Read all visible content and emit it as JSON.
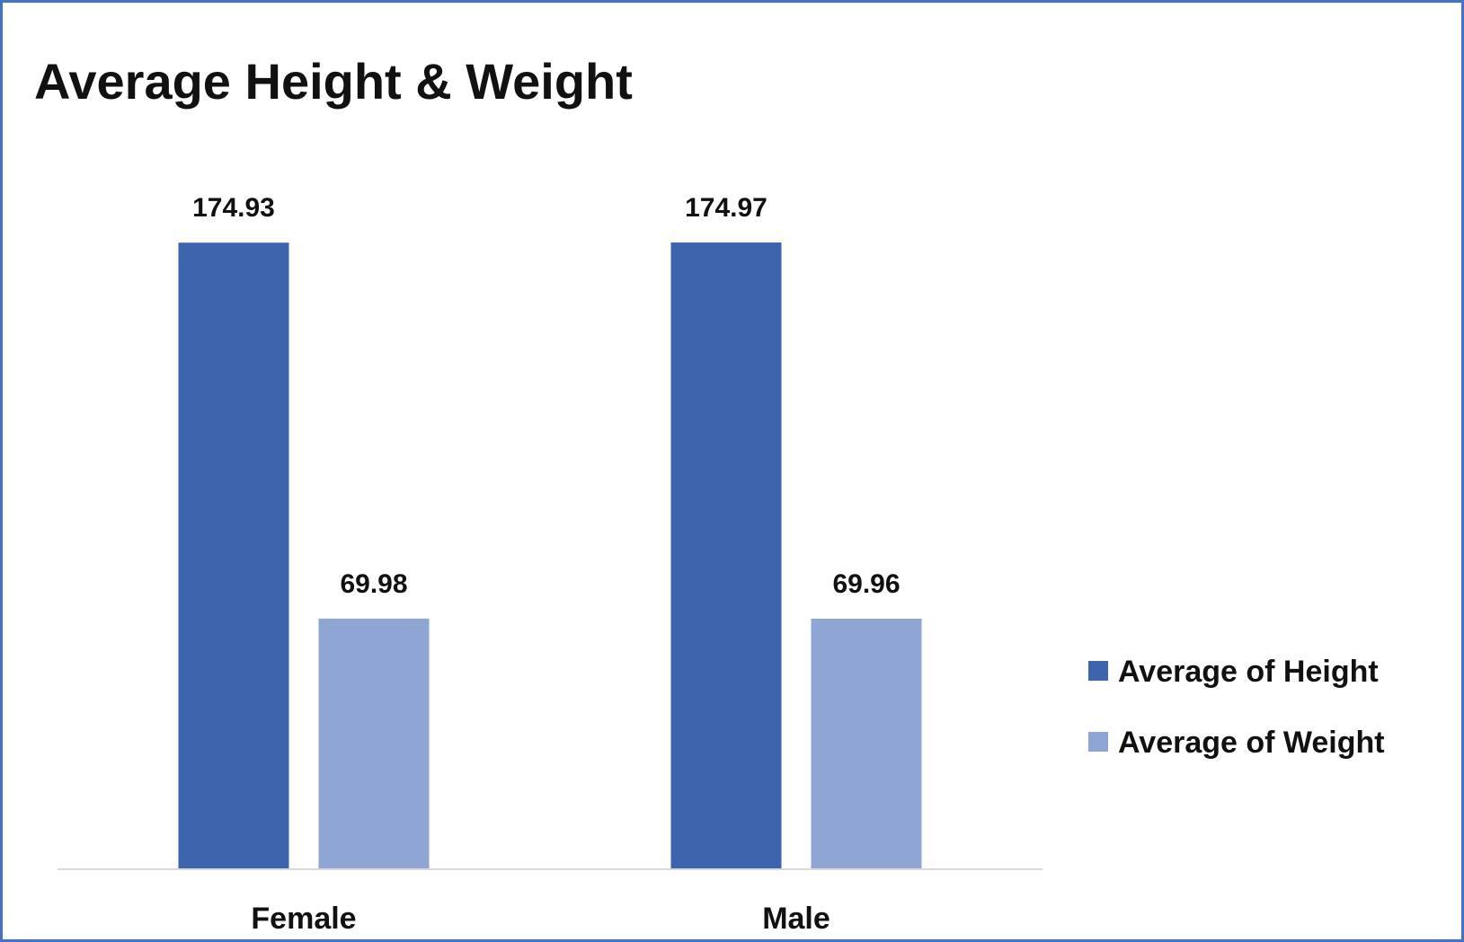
{
  "chart_data": {
    "type": "bar",
    "title": "Average Height & Weight",
    "categories": [
      "Female",
      "Male"
    ],
    "series": [
      {
        "name": "Average of Height",
        "values": [
          174.93,
          174.97
        ],
        "labels": [
          "174.93",
          "174.97"
        ],
        "color": "#3D64AC"
      },
      {
        "name": "Average of Weight",
        "values": [
          69.98,
          69.96
        ],
        "labels": [
          "69.98",
          "69.96"
        ],
        "color": "#8FA5D4"
      }
    ],
    "xlabel": "",
    "ylabel": "",
    "ylim": [
      0,
      180
    ],
    "grid": false,
    "legend": "right",
    "colors": {
      "border": "#4472C4",
      "axis": "#d9d9d9",
      "text": "#111111"
    }
  }
}
